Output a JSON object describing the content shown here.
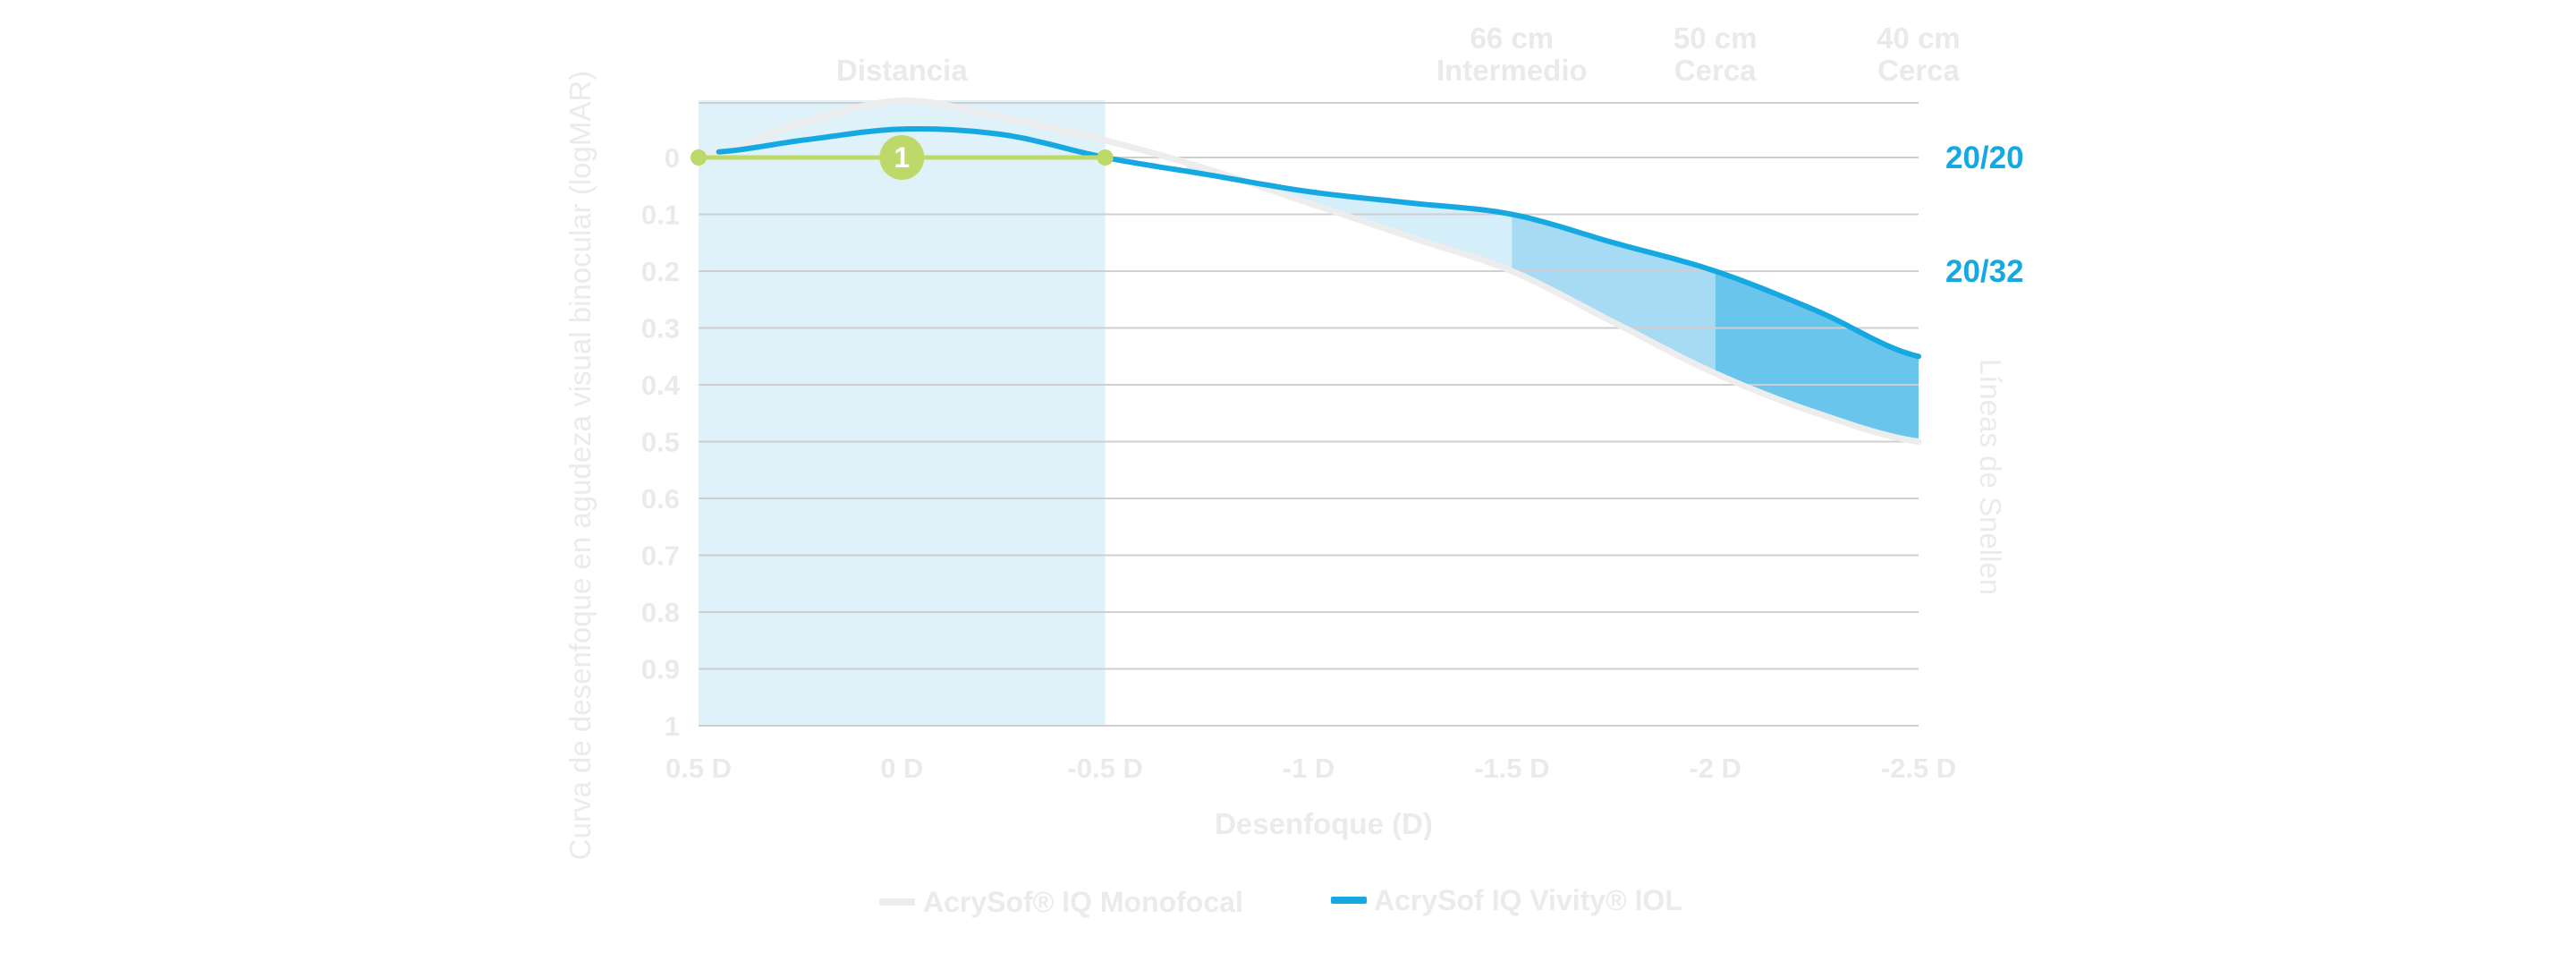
{
  "colors": {
    "background": "#ffffff",
    "distance_band": "#dff1f9",
    "grid": "#cfcfcf",
    "vivity": "#16a9e1",
    "monofocal": "#ededed",
    "marker_green": "#bcd96a",
    "fill_intermediate": "#d4eefa",
    "fill_near_50": "#a6dbf3",
    "fill_near_40": "#6ac5ec",
    "faint_text": "#eaeaea"
  },
  "chart_data": {
    "type": "line",
    "xlabel": "Desenfoque (D)",
    "ylabel": "Curva de desenfoque en agudeza visual binocular (logMAR)",
    "right_axis_label": "Líneas de Snellen",
    "x_tick_labels": [
      "0.5 D",
      "0 D",
      "-0.5 D",
      "-1 D",
      "-1.5 D",
      "-2 D",
      "-2.5 D"
    ],
    "x_ticks": [
      0.5,
      0,
      -0.5,
      -1,
      -1.5,
      -2,
      -2.5
    ],
    "xlim": [
      0.5,
      -2.5
    ],
    "y_tick_labels": [
      "0",
      "0.1",
      "0.2",
      "0.3",
      "0.4",
      "0.5",
      "0.6",
      "0.7",
      "0.8",
      "0.9",
      "1"
    ],
    "y_ticks": [
      0,
      0.1,
      0.2,
      0.3,
      0.4,
      0.5,
      0.6,
      0.7,
      0.8,
      0.9,
      1.0
    ],
    "ylim": [
      -0.1,
      1.0
    ],
    "y_inverted": true,
    "grid": true,
    "legend_position": "bottom",
    "region_headers": [
      {
        "lines": [
          "Distancia"
        ],
        "x": 0
      },
      {
        "lines": [
          "66 cm",
          "Intermedio"
        ],
        "x": -1.5
      },
      {
        "lines": [
          "50 cm",
          "Cerca"
        ],
        "x": -2
      },
      {
        "lines": [
          "40 cm",
          "Cerca"
        ],
        "x": -2.5
      }
    ],
    "snellen_labels": [
      {
        "text": "20/20",
        "y": 0
      },
      {
        "text": "20/32",
        "y": 0.2
      }
    ],
    "distance_band": {
      "from": 0.5,
      "to": -0.5
    },
    "marker": {
      "label": "1",
      "x": 0,
      "y": 0,
      "range": [
        0.5,
        -0.5
      ]
    },
    "series": [
      {
        "name": "AcrySof® IQ Monofocal",
        "color": "#ededed",
        "x": [
          0.5,
          0.25,
          0,
          -0.25,
          -0.5,
          -0.75,
          -1,
          -1.25,
          -1.5,
          -1.75,
          -2,
          -2.25,
          -2.5
        ],
        "y": [
          0.0,
          -0.06,
          -0.1,
          -0.07,
          -0.03,
          0.02,
          0.08,
          0.14,
          0.2,
          0.29,
          0.38,
          0.45,
          0.5
        ]
      },
      {
        "name": "AcrySof IQ Vivity® IOL",
        "color": "#16a9e1",
        "x": [
          0.45,
          0.25,
          0,
          -0.25,
          -0.5,
          -0.75,
          -1,
          -1.25,
          -1.5,
          -1.75,
          -2,
          -2.25,
          -2.5
        ],
        "y": [
          -0.01,
          -0.03,
          -0.05,
          -0.04,
          0.0,
          0.03,
          0.06,
          0.08,
          0.1,
          0.15,
          0.2,
          0.27,
          0.35
        ]
      }
    ],
    "shaded_regions": [
      {
        "from": -0.7,
        "to": -1.5,
        "color": "#d4eefa"
      },
      {
        "from": -1.5,
        "to": -2,
        "color": "#a6dbf3"
      },
      {
        "from": -2,
        "to": -2.5,
        "color": "#6ac5ec"
      }
    ]
  }
}
